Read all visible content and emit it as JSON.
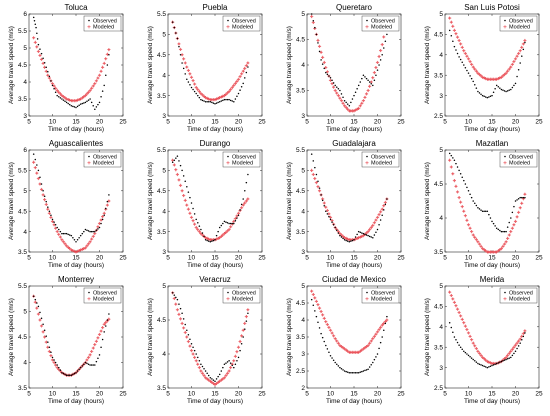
{
  "common": {
    "xlabel": "Time of day (hours)",
    "ylabel": "Average travel speed (m/s)",
    "legend": [
      "Observed",
      "Modeled"
    ],
    "legend_position": "top-right",
    "colors": {
      "observed": "#000000",
      "modeled": "#e8434b"
    },
    "xticks": [
      5,
      10,
      15,
      20,
      25
    ]
  },
  "chart_data": [
    {
      "type": "scatter",
      "title": "Toluca",
      "xlim": [
        5,
        25
      ],
      "ylim": [
        3,
        6
      ],
      "yticks": [
        3,
        3.5,
        4,
        4.5,
        5,
        5.5,
        6
      ],
      "series": [
        {
          "name": "Observed",
          "x": [
            6,
            6.5,
            7,
            8,
            9,
            10,
            11,
            12,
            13,
            14,
            15,
            16,
            17,
            18,
            19,
            20,
            21,
            22
          ],
          "y": [
            5.9,
            5.6,
            5.1,
            4.7,
            4.3,
            3.9,
            3.6,
            3.5,
            3.4,
            3.3,
            3.25,
            3.35,
            3.4,
            3.5,
            3.2,
            3.4,
            3.9,
            4.8
          ]
        },
        {
          "name": "Modeled",
          "x": [
            6,
            7,
            8,
            9,
            10,
            11,
            12,
            13,
            14,
            15,
            16,
            17,
            18,
            19,
            20,
            21,
            22
          ],
          "y": [
            5.3,
            4.9,
            4.55,
            4.2,
            3.95,
            3.75,
            3.6,
            3.5,
            3.45,
            3.45,
            3.5,
            3.6,
            3.75,
            3.95,
            4.2,
            4.55,
            4.95
          ]
        }
      ]
    },
    {
      "type": "scatter",
      "title": "Puebla",
      "xlim": [
        5,
        25
      ],
      "ylim": [
        3,
        5.5
      ],
      "yticks": [
        3,
        3.5,
        4,
        4.5,
        5,
        5.5
      ],
      "series": [
        {
          "name": "Observed",
          "x": [
            6,
            7,
            8,
            9,
            10,
            11,
            12,
            13,
            14,
            15,
            16,
            17,
            18,
            19,
            20,
            21,
            22
          ],
          "y": [
            5.3,
            4.9,
            4.3,
            3.9,
            3.7,
            3.55,
            3.4,
            3.35,
            3.35,
            3.3,
            3.35,
            3.4,
            3.4,
            3.35,
            3.55,
            3.8,
            4.2
          ]
        },
        {
          "name": "Modeled",
          "x": [
            6,
            7,
            8,
            9,
            10,
            11,
            12,
            13,
            14,
            15,
            16,
            17,
            18,
            19,
            20,
            21,
            22
          ],
          "y": [
            5.3,
            4.9,
            4.5,
            4.2,
            3.95,
            3.7,
            3.55,
            3.45,
            3.4,
            3.4,
            3.45,
            3.5,
            3.6,
            3.75,
            3.9,
            4.1,
            4.3
          ]
        }
      ]
    },
    {
      "type": "scatter",
      "title": "Queretaro",
      "xlim": [
        5,
        25
      ],
      "ylim": [
        3,
        5
      ],
      "yticks": [
        3,
        3.5,
        4,
        4.5,
        5
      ],
      "series": [
        {
          "name": "Observed",
          "x": [
            6,
            7,
            8,
            9,
            10,
            11,
            12,
            13,
            14,
            15,
            16,
            17,
            18,
            19,
            20,
            21,
            22
          ],
          "y": [
            5,
            4.6,
            4.1,
            3.85,
            3.75,
            3.6,
            3.5,
            3.3,
            3.2,
            3.4,
            3.6,
            3.8,
            3.7,
            3.6,
            3.9,
            4.2,
            4.6
          ]
        },
        {
          "name": "Modeled",
          "x": [
            6,
            7,
            8,
            9,
            10,
            11,
            12,
            13,
            14,
            15,
            16,
            17,
            18,
            19,
            20,
            21,
            22
          ],
          "y": [
            4.95,
            4.6,
            4.25,
            3.95,
            3.7,
            3.5,
            3.35,
            3.2,
            3.1,
            3.1,
            3.15,
            3.3,
            3.5,
            3.75,
            4.05,
            4.4,
            4.85
          ]
        }
      ]
    },
    {
      "type": "scatter",
      "title": "San Luis Potosi",
      "xlim": [
        5,
        25
      ],
      "ylim": [
        2.5,
        5
      ],
      "yticks": [
        2.5,
        3,
        3.5,
        4,
        4.5,
        5
      ],
      "series": [
        {
          "name": "Observed",
          "x": [
            6,
            7,
            8,
            9,
            10,
            11,
            12,
            13,
            14,
            15,
            16,
            17,
            18,
            19,
            20,
            21,
            22
          ],
          "y": [
            4.6,
            4.2,
            3.95,
            3.75,
            3.55,
            3.35,
            3.1,
            3.0,
            2.95,
            3.0,
            3.25,
            3.15,
            3.1,
            3.15,
            3.3,
            3.8,
            4.3
          ]
        },
        {
          "name": "Modeled",
          "x": [
            6,
            7,
            8,
            9,
            10,
            11,
            12,
            13,
            14,
            15,
            16,
            17,
            18,
            19,
            20,
            21,
            22
          ],
          "y": [
            4.9,
            4.6,
            4.35,
            4.1,
            3.9,
            3.7,
            3.55,
            3.45,
            3.4,
            3.4,
            3.4,
            3.45,
            3.55,
            3.7,
            3.9,
            4.1,
            4.35
          ]
        }
      ]
    },
    {
      "type": "scatter",
      "title": "Aguascalientes",
      "xlim": [
        5,
        25
      ],
      "ylim": [
        3.5,
        6
      ],
      "yticks": [
        3.5,
        4,
        4.5,
        5,
        5.5,
        6
      ],
      "series": [
        {
          "name": "Observed",
          "x": [
            6,
            7,
            8,
            9,
            10,
            11,
            12,
            13,
            14,
            15,
            16,
            17,
            18,
            19,
            20,
            21,
            22
          ],
          "y": [
            5.9,
            5.5,
            5.0,
            4.6,
            4.3,
            4.1,
            3.95,
            3.95,
            3.9,
            3.75,
            3.9,
            4.05,
            4.0,
            4.0,
            4.1,
            4.4,
            4.9
          ]
        },
        {
          "name": "Modeled",
          "x": [
            6,
            7,
            8,
            9,
            10,
            11,
            12,
            13,
            14,
            15,
            16,
            17,
            18,
            19,
            20,
            21,
            22
          ],
          "y": [
            5.7,
            5.3,
            4.9,
            4.55,
            4.25,
            4.0,
            3.8,
            3.65,
            3.55,
            3.5,
            3.55,
            3.6,
            3.75,
            3.95,
            4.2,
            4.45,
            4.75
          ]
        }
      ]
    },
    {
      "type": "scatter",
      "title": "Durango",
      "xlim": [
        5,
        25
      ],
      "ylim": [
        3,
        5.5
      ],
      "yticks": [
        3,
        3.5,
        4,
        4.5,
        5,
        5.5
      ],
      "series": [
        {
          "name": "Observed",
          "x": [
            6,
            7,
            8,
            9,
            10,
            11,
            12,
            13,
            14,
            15,
            16,
            17,
            18,
            19,
            20,
            21,
            22
          ],
          "y": [
            5.2,
            5.35,
            5.0,
            4.6,
            4.2,
            3.8,
            3.55,
            3.3,
            3.25,
            3.3,
            3.6,
            3.75,
            3.7,
            3.7,
            3.9,
            4.3,
            4.9
          ]
        },
        {
          "name": "Modeled",
          "x": [
            6,
            7,
            8,
            9,
            10,
            11,
            12,
            13,
            14,
            15,
            16,
            17,
            18,
            19,
            20,
            21,
            22
          ],
          "y": [
            5.25,
            4.9,
            4.5,
            4.15,
            3.85,
            3.6,
            3.45,
            3.35,
            3.3,
            3.3,
            3.35,
            3.45,
            3.55,
            3.75,
            3.95,
            4.15,
            4.3
          ]
        }
      ]
    },
    {
      "type": "scatter",
      "title": "Guadalajara",
      "xlim": [
        5,
        25
      ],
      "ylim": [
        3,
        5.5
      ],
      "yticks": [
        3,
        3.5,
        4,
        4.5,
        5,
        5.5
      ],
      "series": [
        {
          "name": "Observed",
          "x": [
            6,
            7,
            8,
            9,
            10,
            11,
            12,
            13,
            14,
            15,
            16,
            17,
            18,
            19,
            20,
            21,
            22
          ],
          "y": [
            5.4,
            4.9,
            4.4,
            4.0,
            3.8,
            3.6,
            3.4,
            3.3,
            3.25,
            3.3,
            3.5,
            3.45,
            3.4,
            3.35,
            3.55,
            3.9,
            4.3
          ]
        },
        {
          "name": "Modeled",
          "x": [
            6,
            7,
            8,
            9,
            10,
            11,
            12,
            13,
            14,
            15,
            16,
            17,
            18,
            19,
            20,
            21,
            22
          ],
          "y": [
            5.0,
            4.7,
            4.4,
            4.1,
            3.85,
            3.6,
            3.45,
            3.35,
            3.3,
            3.3,
            3.35,
            3.4,
            3.5,
            3.65,
            3.85,
            4.05,
            4.3
          ]
        }
      ]
    },
    {
      "type": "scatter",
      "title": "Mazatlan",
      "xlim": [
        5,
        25
      ],
      "ylim": [
        3.5,
        5
      ],
      "yticks": [
        3.5,
        4,
        4.5,
        5
      ],
      "series": [
        {
          "name": "Observed",
          "x": [
            6,
            7,
            8,
            9,
            10,
            11,
            12,
            13,
            14,
            15,
            16,
            17,
            18,
            19,
            20,
            21,
            22
          ],
          "y": [
            4.95,
            4.85,
            4.7,
            4.55,
            4.4,
            4.25,
            4.15,
            4.1,
            4.1,
            3.95,
            3.85,
            3.8,
            3.8,
            4.0,
            4.25,
            4.3,
            4.3
          ]
        },
        {
          "name": "Modeled",
          "x": [
            6,
            7,
            8,
            9,
            10,
            11,
            12,
            13,
            14,
            15,
            16,
            17,
            18,
            19,
            20,
            21,
            22
          ],
          "y": [
            4.85,
            4.55,
            4.3,
            4.1,
            3.9,
            3.75,
            3.65,
            3.55,
            3.5,
            3.5,
            3.5,
            3.55,
            3.65,
            3.8,
            3.95,
            4.15,
            4.35
          ]
        }
      ]
    },
    {
      "type": "scatter",
      "title": "Monterrey",
      "xlim": [
        5,
        25
      ],
      "ylim": [
        3.5,
        5.5
      ],
      "yticks": [
        3.5,
        4,
        4.5,
        5,
        5.5
      ],
      "series": [
        {
          "name": "Observed",
          "x": [
            6,
            7,
            8,
            9,
            10,
            11,
            12,
            13,
            14,
            15,
            16,
            17,
            18,
            19,
            20,
            21,
            22
          ],
          "y": [
            5.3,
            5.1,
            4.75,
            4.4,
            4.1,
            3.95,
            3.8,
            3.75,
            3.75,
            3.8,
            3.9,
            4.0,
            3.95,
            3.95,
            4.15,
            4.6,
            4.95
          ]
        },
        {
          "name": "Modeled",
          "x": [
            6,
            7,
            8,
            9,
            10,
            11,
            12,
            13,
            14,
            15,
            16,
            17,
            18,
            19,
            20,
            21,
            22
          ],
          "y": [
            5.3,
            4.95,
            4.6,
            4.3,
            4.05,
            3.9,
            3.8,
            3.75,
            3.75,
            3.8,
            3.9,
            4.0,
            4.15,
            4.35,
            4.55,
            4.75,
            4.85
          ]
        }
      ]
    },
    {
      "type": "scatter",
      "title": "Veracruz",
      "xlim": [
        5,
        25
      ],
      "ylim": [
        3.5,
        5
      ],
      "yticks": [
        3.5,
        4,
        4.5,
        5
      ],
      "series": [
        {
          "name": "Observed",
          "x": [
            6,
            7,
            8,
            9,
            10,
            11,
            12,
            13,
            14,
            15,
            16,
            17,
            18,
            19,
            20,
            21,
            22
          ],
          "y": [
            4.9,
            4.8,
            4.6,
            4.35,
            4.15,
            4.0,
            3.85,
            3.75,
            3.65,
            3.6,
            3.7,
            3.85,
            3.9,
            3.8,
            3.95,
            4.25,
            4.6
          ]
        },
        {
          "name": "Modeled",
          "x": [
            6,
            7,
            8,
            9,
            10,
            11,
            12,
            13,
            14,
            15,
            16,
            17,
            18,
            19,
            20,
            21,
            22
          ],
          "y": [
            4.9,
            4.65,
            4.45,
            4.25,
            4.05,
            3.9,
            3.75,
            3.65,
            3.6,
            3.55,
            3.6,
            3.65,
            3.75,
            3.9,
            4.1,
            4.35,
            4.65
          ]
        }
      ]
    },
    {
      "type": "scatter",
      "title": "Ciudad de Mexico",
      "xlim": [
        5,
        25
      ],
      "ylim": [
        2,
        5
      ],
      "yticks": [
        2,
        2.5,
        3,
        3.5,
        4,
        4.5,
        5
      ],
      "series": [
        {
          "name": "Observed",
          "x": [
            6,
            7,
            8,
            9,
            10,
            11,
            12,
            13,
            14,
            15,
            16,
            17,
            18,
            19,
            20,
            21,
            22
          ],
          "y": [
            4.6,
            4.1,
            3.6,
            3.25,
            2.95,
            2.75,
            2.6,
            2.5,
            2.45,
            2.45,
            2.45,
            2.5,
            2.55,
            2.75,
            3.0,
            3.5,
            4.1
          ]
        },
        {
          "name": "Modeled",
          "x": [
            6,
            7,
            8,
            9,
            10,
            11,
            12,
            13,
            14,
            15,
            16,
            17,
            18,
            19,
            20,
            21,
            22
          ],
          "y": [
            4.85,
            4.55,
            4.25,
            3.95,
            3.7,
            3.45,
            3.25,
            3.15,
            3.05,
            3.05,
            3.05,
            3.15,
            3.25,
            3.45,
            3.65,
            3.85,
            4.0
          ]
        }
      ]
    },
    {
      "type": "scatter",
      "title": "Merida",
      "xlim": [
        5,
        25
      ],
      "ylim": [
        2.5,
        5
      ],
      "yticks": [
        2.5,
        3,
        3.5,
        4,
        4.5,
        5
      ],
      "series": [
        {
          "name": "Observed",
          "x": [
            6,
            7,
            8,
            9,
            10,
            11,
            12,
            13,
            14,
            15,
            16,
            17,
            18,
            19,
            20,
            21,
            22
          ],
          "y": [
            4.1,
            3.75,
            3.55,
            3.4,
            3.3,
            3.2,
            3.1,
            3.05,
            3.0,
            3.05,
            3.1,
            3.15,
            3.2,
            3.25,
            3.4,
            3.6,
            3.85
          ]
        },
        {
          "name": "Modeled",
          "x": [
            6,
            7,
            8,
            9,
            10,
            11,
            12,
            13,
            14,
            15,
            16,
            17,
            18,
            19,
            20,
            21,
            22
          ],
          "y": [
            4.85,
            4.6,
            4.35,
            4.1,
            3.85,
            3.6,
            3.4,
            3.25,
            3.15,
            3.1,
            3.1,
            3.15,
            3.25,
            3.4,
            3.55,
            3.7,
            3.9
          ]
        }
      ]
    }
  ]
}
